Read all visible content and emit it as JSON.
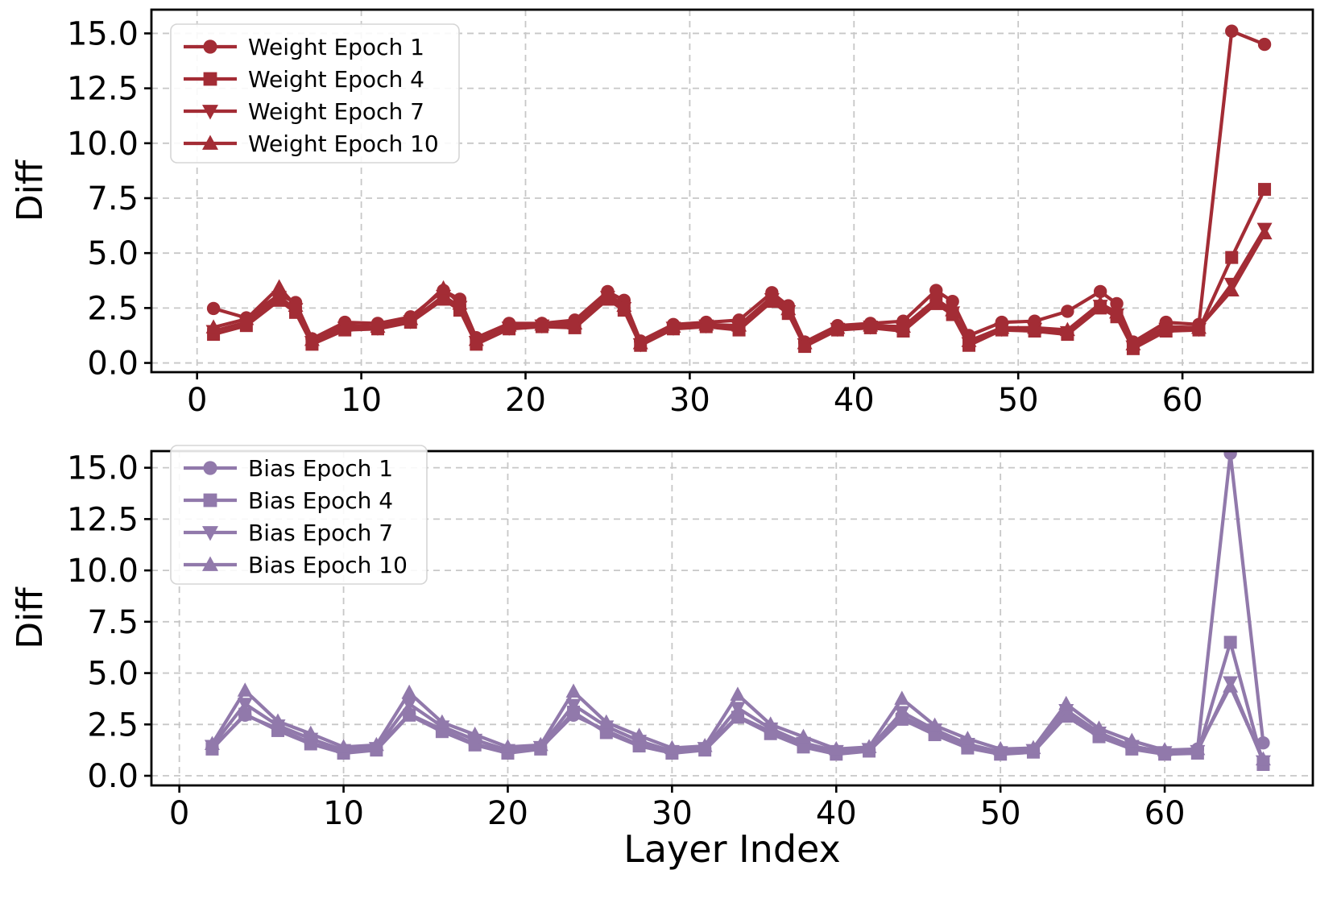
{
  "figure": {
    "background": "#ffffff",
    "xlabel": "Layer Index"
  },
  "chart_data": [
    {
      "id": "weight",
      "type": "line",
      "title": "",
      "ylabel": "Diff",
      "xlabel": "",
      "color": "#A32C35",
      "grid": true,
      "legend_position": "upper left",
      "xlim": [
        -2.78,
        67.94
      ],
      "ylim": [
        -0.42,
        16.08
      ],
      "xticks": {
        "values": [
          0,
          10,
          20,
          30,
          40,
          50,
          60
        ],
        "labels": [
          "0",
          "10",
          "20",
          "30",
          "40",
          "50",
          "60"
        ]
      },
      "yticks": {
        "values": [
          0,
          2.5,
          5,
          7.5,
          10,
          12.5,
          15
        ],
        "labels": [
          "0.0",
          "2.5",
          "5.0",
          "7.5",
          "10.0",
          "12.5",
          "15.0"
        ]
      },
      "x": [
        1,
        3,
        5,
        6,
        7,
        9,
        11,
        13,
        15,
        16,
        17,
        19,
        21,
        23,
        25,
        26,
        27,
        29,
        31,
        33,
        35,
        36,
        37,
        39,
        41,
        43,
        45,
        46,
        47,
        49,
        51,
        53,
        55,
        56,
        57,
        59,
        61,
        63,
        65
      ],
      "series": [
        {
          "name": "Weight Epoch 1",
          "marker": "circle",
          "values": [
            2.48,
            2.05,
            3.1,
            2.75,
            1.1,
            1.85,
            1.8,
            2.1,
            3.3,
            2.9,
            1.15,
            1.8,
            1.8,
            1.95,
            3.25,
            2.85,
            1.0,
            1.75,
            1.85,
            1.95,
            3.2,
            2.6,
            0.95,
            1.7,
            1.8,
            1.9,
            3.3,
            2.8,
            1.25,
            1.85,
            1.9,
            2.35,
            3.25,
            2.7,
            0.95,
            1.85,
            1.75,
            15.1,
            14.5
          ]
        },
        {
          "name": "Weight Epoch 4",
          "marker": "square",
          "values": [
            1.3,
            1.7,
            2.85,
            2.3,
            0.85,
            1.5,
            1.55,
            1.85,
            2.9,
            2.4,
            0.85,
            1.55,
            1.65,
            1.6,
            2.9,
            2.4,
            0.8,
            1.55,
            1.65,
            1.5,
            2.8,
            2.25,
            0.75,
            1.5,
            1.6,
            1.45,
            2.7,
            2.2,
            0.8,
            1.5,
            1.45,
            1.3,
            2.5,
            2.1,
            0.65,
            1.45,
            1.5,
            4.8,
            7.9
          ]
        },
        {
          "name": "Weight Epoch 7",
          "marker": "triangle-down",
          "values": [
            1.45,
            1.85,
            3.0,
            2.45,
            0.95,
            1.6,
            1.6,
            1.9,
            3.05,
            2.55,
            0.95,
            1.6,
            1.7,
            1.7,
            3.0,
            2.5,
            0.85,
            1.6,
            1.7,
            1.6,
            2.9,
            2.35,
            0.85,
            1.55,
            1.65,
            1.55,
            2.8,
            2.3,
            0.9,
            1.55,
            1.55,
            1.4,
            2.6,
            2.2,
            0.75,
            1.55,
            1.55,
            3.6,
            6.1
          ]
        },
        {
          "name": "Weight Epoch 10",
          "marker": "triangle-up",
          "values": [
            1.62,
            2.0,
            3.45,
            2.6,
            1.05,
            1.7,
            1.65,
            2.0,
            3.4,
            2.7,
            1.05,
            1.7,
            1.75,
            1.8,
            3.15,
            2.6,
            0.9,
            1.65,
            1.75,
            1.7,
            3.0,
            2.45,
            0.9,
            1.6,
            1.7,
            1.65,
            2.9,
            2.4,
            1.0,
            1.6,
            1.6,
            1.5,
            2.7,
            2.3,
            0.85,
            1.65,
            1.6,
            3.3,
            5.9
          ]
        }
      ]
    },
    {
      "id": "bias",
      "type": "line",
      "title": "",
      "ylabel": "Diff",
      "xlabel": "Layer Index",
      "color": "#9179AB",
      "grid": true,
      "legend_position": "upper left",
      "xlim": [
        -1.7,
        69.02
      ],
      "ylim": [
        -0.47,
        15.81
      ],
      "xticks": {
        "values": [
          0,
          10,
          20,
          30,
          40,
          50,
          60
        ],
        "labels": [
          "0",
          "10",
          "20",
          "30",
          "40",
          "50",
          "60"
        ]
      },
      "yticks": {
        "values": [
          0,
          2.5,
          5,
          7.5,
          10,
          12.5,
          15
        ],
        "labels": [
          "0.0",
          "2.5",
          "5.0",
          "7.5",
          "10.0",
          "12.5",
          "15.0"
        ]
      },
      "x": [
        2,
        4,
        6,
        8,
        10,
        12,
        14,
        16,
        18,
        20,
        22,
        24,
        26,
        28,
        30,
        32,
        34,
        36,
        38,
        40,
        42,
        44,
        46,
        48,
        50,
        52,
        54,
        56,
        58,
        60,
        62,
        64,
        66
      ],
      "series": [
        {
          "name": "Bias Epoch 1",
          "marker": "circle",
          "values": [
            1.35,
            2.95,
            2.3,
            1.6,
            1.15,
            1.3,
            3.0,
            2.25,
            1.55,
            1.15,
            1.35,
            2.95,
            2.2,
            1.5,
            1.15,
            1.3,
            2.9,
            2.15,
            1.45,
            1.1,
            1.25,
            2.9,
            2.1,
            1.4,
            1.1,
            1.2,
            3.0,
            2.0,
            1.35,
            1.1,
            1.3,
            15.7,
            1.6
          ]
        },
        {
          "name": "Bias Epoch 4",
          "marker": "square",
          "values": [
            1.3,
            3.0,
            2.2,
            1.55,
            1.1,
            1.25,
            2.95,
            2.15,
            1.5,
            1.1,
            1.3,
            3.1,
            2.1,
            1.45,
            1.1,
            1.25,
            2.85,
            2.05,
            1.4,
            1.05,
            1.2,
            2.75,
            2.0,
            1.35,
            1.05,
            1.15,
            2.9,
            1.9,
            1.3,
            1.05,
            1.1,
            6.5,
            0.55
          ]
        },
        {
          "name": "Bias Epoch 7",
          "marker": "triangle-down",
          "values": [
            1.45,
            3.5,
            2.45,
            1.8,
            1.25,
            1.35,
            3.5,
            2.4,
            1.75,
            1.25,
            1.4,
            3.45,
            2.4,
            1.7,
            1.2,
            1.35,
            3.3,
            2.3,
            1.6,
            1.2,
            1.3,
            3.1,
            2.25,
            1.55,
            1.15,
            1.25,
            3.2,
            2.1,
            1.45,
            1.15,
            1.2,
            4.55,
            0.7
          ]
        },
        {
          "name": "Bias Epoch 10",
          "marker": "triangle-up",
          "values": [
            1.55,
            4.15,
            2.65,
            2.05,
            1.4,
            1.5,
            4.05,
            2.6,
            2.0,
            1.4,
            1.5,
            4.1,
            2.6,
            1.95,
            1.35,
            1.45,
            3.95,
            2.5,
            1.9,
            1.3,
            1.4,
            3.75,
            2.45,
            1.8,
            1.3,
            1.35,
            3.5,
            2.3,
            1.7,
            1.25,
            1.3,
            4.35,
            0.8
          ]
        }
      ]
    }
  ],
  "style": {
    "grid_color": "#c7c7c7",
    "spine_color": "#000000",
    "legend_border": "#d5d5d5",
    "legend_bg": "#ffffff"
  }
}
